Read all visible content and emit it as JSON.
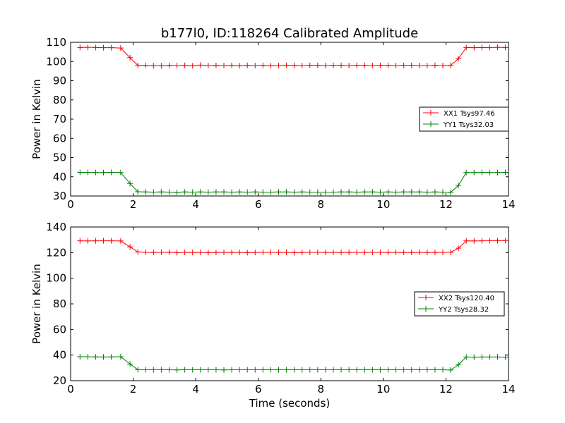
{
  "title": "b177l0, ID:118264 Calibrated Amplitude",
  "chart_data": [
    {
      "type": "line",
      "xlabel": "",
      "ylabel": "Power in Kelvin",
      "xlim": [
        0,
        14
      ],
      "ylim": [
        30,
        110
      ],
      "xticks": [
        "0",
        "2",
        "4",
        "6",
        "8",
        "10",
        "12",
        "14"
      ],
      "yticks": [
        "30",
        "40",
        "50",
        "60",
        "70",
        "80",
        "90",
        "100",
        "110"
      ],
      "legend_position": "right",
      "series": [
        {
          "name": "XX1 Tsys97.46",
          "color": "#ff0000",
          "x": [
            0.3,
            0.55,
            0.8,
            1.05,
            1.3,
            1.6,
            1.9,
            2.15,
            2.4,
            2.65,
            2.9,
            3.15,
            3.4,
            3.65,
            3.9,
            4.15,
            4.4,
            4.65,
            4.9,
            5.15,
            5.4,
            5.65,
            5.9,
            6.15,
            6.4,
            6.65,
            6.9,
            7.15,
            7.4,
            7.65,
            7.9,
            8.15,
            8.4,
            8.65,
            8.9,
            9.15,
            9.4,
            9.65,
            9.9,
            10.15,
            10.4,
            10.65,
            10.9,
            11.15,
            11.4,
            11.65,
            11.9,
            12.15,
            12.4,
            12.65,
            12.9,
            13.15,
            13.4,
            13.65,
            13.9
          ],
          "y": [
            107.3,
            107.4,
            107.3,
            107.2,
            107.2,
            107.0,
            102.0,
            98.0,
            98.0,
            97.8,
            97.8,
            98.0,
            97.9,
            98.0,
            97.8,
            98.1,
            97.9,
            98.0,
            97.9,
            98.0,
            97.8,
            98.0,
            97.9,
            98.0,
            97.8,
            97.9,
            98.0,
            98.0,
            97.9,
            98.0,
            98.0,
            97.9,
            98.0,
            98.0,
            97.9,
            98.0,
            98.0,
            97.9,
            98.0,
            98.0,
            97.9,
            98.0,
            98.0,
            97.9,
            97.9,
            98.0,
            97.9,
            98.0,
            101.5,
            107.3,
            107.2,
            107.3,
            107.2,
            107.4,
            107.3
          ]
        },
        {
          "name": "YY1 Tsys32.03",
          "color": "#008000",
          "x": [
            0.3,
            0.55,
            0.8,
            1.05,
            1.3,
            1.6,
            1.9,
            2.15,
            2.4,
            2.65,
            2.9,
            3.15,
            3.4,
            3.65,
            3.9,
            4.15,
            4.4,
            4.65,
            4.9,
            5.15,
            5.4,
            5.65,
            5.9,
            6.15,
            6.4,
            6.65,
            6.9,
            7.15,
            7.4,
            7.65,
            7.9,
            8.15,
            8.4,
            8.65,
            8.9,
            9.15,
            9.4,
            9.65,
            9.9,
            10.15,
            10.4,
            10.65,
            10.9,
            11.15,
            11.4,
            11.65,
            11.9,
            12.15,
            12.4,
            12.65,
            12.9,
            13.15,
            13.4,
            13.65,
            13.9
          ],
          "y": [
            42.3,
            42.3,
            42.2,
            42.2,
            42.3,
            42.2,
            36.5,
            32.2,
            32.1,
            32.0,
            32.1,
            32.0,
            31.9,
            32.1,
            32.0,
            32.1,
            32.0,
            32.1,
            32.1,
            32.0,
            32.1,
            32.0,
            32.1,
            32.0,
            32.0,
            32.1,
            32.1,
            32.0,
            32.1,
            32.0,
            32.0,
            32.0,
            32.0,
            32.1,
            32.1,
            32.0,
            32.1,
            32.1,
            32.0,
            32.1,
            32.0,
            32.1,
            32.1,
            32.1,
            32.0,
            32.1,
            32.0,
            31.9,
            35.5,
            42.2,
            42.2,
            42.3,
            42.2,
            42.2,
            42.3
          ]
        }
      ]
    },
    {
      "type": "line",
      "xlabel": "Time (seconds)",
      "ylabel": "Power in Kelvin",
      "xlim": [
        0,
        14
      ],
      "ylim": [
        20,
        140
      ],
      "xticks": [
        "0",
        "2",
        "4",
        "6",
        "8",
        "10",
        "12",
        "14"
      ],
      "yticks": [
        "20",
        "40",
        "60",
        "80",
        "100",
        "120",
        "140"
      ],
      "legend_position": "right",
      "series": [
        {
          "name": "XX2 Tsys120.40",
          "color": "#ff0000",
          "x": [
            0.3,
            0.55,
            0.8,
            1.05,
            1.3,
            1.6,
            1.9,
            2.15,
            2.4,
            2.65,
            2.9,
            3.15,
            3.4,
            3.65,
            3.9,
            4.15,
            4.4,
            4.65,
            4.9,
            5.15,
            5.4,
            5.65,
            5.9,
            6.15,
            6.4,
            6.65,
            6.9,
            7.15,
            7.4,
            7.65,
            7.9,
            8.15,
            8.4,
            8.65,
            8.9,
            9.15,
            9.4,
            9.65,
            9.9,
            10.15,
            10.4,
            10.65,
            10.9,
            11.15,
            11.4,
            11.65,
            11.9,
            12.15,
            12.4,
            12.65,
            12.9,
            13.15,
            13.4,
            13.65,
            13.9
          ],
          "y": [
            129.2,
            129.1,
            129.2,
            129.3,
            129.2,
            129.1,
            124.5,
            120.5,
            120.2,
            120.1,
            120.2,
            120.3,
            120.0,
            120.2,
            120.1,
            120.2,
            120.0,
            120.1,
            120.2,
            120.1,
            120.2,
            120.0,
            120.1,
            120.2,
            120.2,
            120.1,
            120.2,
            120.0,
            120.1,
            120.2,
            120.2,
            120.1,
            120.2,
            120.1,
            120.1,
            120.2,
            120.1,
            120.2,
            120.2,
            120.1,
            120.2,
            120.1,
            120.1,
            120.2,
            120.1,
            120.1,
            120.2,
            120.2,
            123.5,
            129.2,
            129.1,
            129.2,
            129.3,
            129.3,
            129.4
          ]
        },
        {
          "name": "YY2 Tsys28.32",
          "color": "#008000",
          "x": [
            0.3,
            0.55,
            0.8,
            1.05,
            1.3,
            1.6,
            1.9,
            2.15,
            2.4,
            2.65,
            2.9,
            3.15,
            3.4,
            3.65,
            3.9,
            4.15,
            4.4,
            4.65,
            4.9,
            5.15,
            5.4,
            5.65,
            5.9,
            6.15,
            6.4,
            6.65,
            6.9,
            7.15,
            7.4,
            7.65,
            7.9,
            8.15,
            8.4,
            8.65,
            8.9,
            9.15,
            9.4,
            9.65,
            9.9,
            10.15,
            10.4,
            10.65,
            10.9,
            11.15,
            11.4,
            11.65,
            11.9,
            12.15,
            12.4,
            12.65,
            12.9,
            13.15,
            13.4,
            13.65,
            13.9
          ],
          "y": [
            38.7,
            38.7,
            38.6,
            38.5,
            38.6,
            38.7,
            33.0,
            28.6,
            28.5,
            28.5,
            28.5,
            28.5,
            28.4,
            28.5,
            28.5,
            28.5,
            28.5,
            28.5,
            28.4,
            28.5,
            28.5,
            28.5,
            28.5,
            28.5,
            28.5,
            28.5,
            28.5,
            28.5,
            28.5,
            28.5,
            28.5,
            28.5,
            28.5,
            28.5,
            28.5,
            28.5,
            28.5,
            28.5,
            28.5,
            28.5,
            28.5,
            28.5,
            28.5,
            28.5,
            28.5,
            28.5,
            28.5,
            28.3,
            32.5,
            38.5,
            38.4,
            38.5,
            38.5,
            38.5,
            38.4
          ]
        }
      ]
    }
  ]
}
